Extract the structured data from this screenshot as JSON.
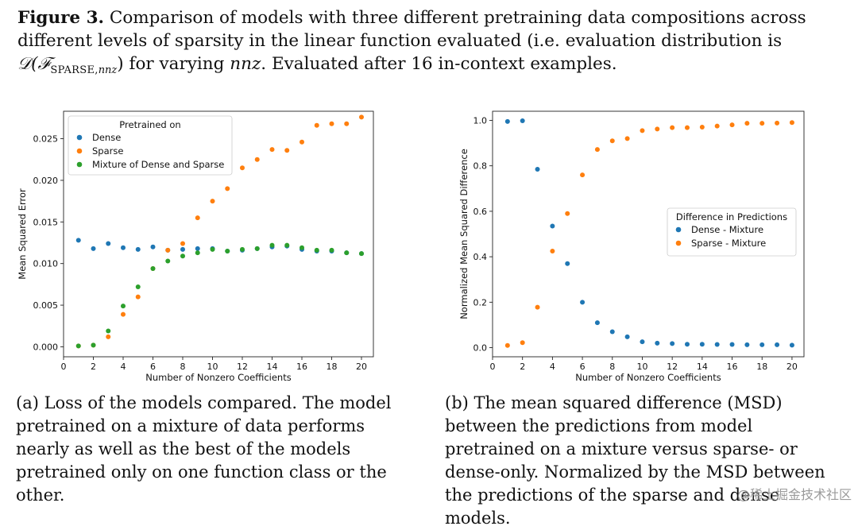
{
  "caption": {
    "label": "Figure 3.",
    "part1": " Comparison of models with three different pretraining data compositions across different levels of sparsity in the linear function evaluated (i.e. evaluation distribution is ",
    "math_d": "𝒟(ℱ",
    "math_sub": "SPARSE,",
    "math_sub_it": "nnz",
    "math_close": ")",
    "part2": " for varying ",
    "nnz": "nnz",
    "part3": ". Evaluated after 16 in-context examples."
  },
  "subcaptions": {
    "a": "(a) Loss of the models compared. The model pretrained on a mixture of data performs nearly as well as the best of the models pretrained only on one function class or the other.",
    "b": "(b) The mean squared difference (MSD) between the predictions from model pretrained on a mixture versus sparse- or dense-only. Normalized by the MSD between the predictions of the sparse and dense models."
  },
  "watermark": "@稀土掘金技术社区",
  "colors": {
    "blue": "#1f77b4",
    "orange": "#ff7f0e",
    "green": "#2ca02c"
  },
  "chart_data": [
    {
      "type": "scatter",
      "xlabel": "Number of Nonzero Coefficients",
      "ylabel": "Mean Squared Error",
      "xlim": [
        0,
        20.8
      ],
      "ylim": [
        -0.0012,
        0.0283
      ],
      "xticks": [
        0,
        2,
        4,
        6,
        8,
        10,
        12,
        14,
        16,
        18,
        20
      ],
      "yticks": [
        0.0,
        0.005,
        0.01,
        0.015,
        0.02,
        0.025
      ],
      "ytick_labels": [
        "0.000",
        "0.005",
        "0.010",
        "0.015",
        "0.020",
        "0.025"
      ],
      "legend": {
        "title": "Pretrained on",
        "placement": "top-left"
      },
      "x": [
        1,
        2,
        3,
        4,
        5,
        6,
        7,
        8,
        9,
        10,
        11,
        12,
        13,
        14,
        15,
        16,
        17,
        18,
        19,
        20
      ],
      "series": [
        {
          "name": "Dense",
          "color": "#1f77b4",
          "values": [
            0.0128,
            0.0118,
            0.0124,
            0.0119,
            0.0117,
            0.012,
            0.0116,
            0.0117,
            0.0118,
            0.0118,
            0.0115,
            0.0116,
            0.0118,
            0.012,
            0.0121,
            0.0117,
            0.0115,
            0.0115,
            0.0113,
            0.0112
          ]
        },
        {
          "name": "Sparse",
          "color": "#ff7f0e",
          "values": [
            0.0001,
            0.0002,
            0.0012,
            0.0039,
            0.006,
            0.0094,
            0.0116,
            0.0124,
            0.0155,
            0.0175,
            0.019,
            0.0215,
            0.0225,
            0.0237,
            0.0236,
            0.0246,
            0.0266,
            0.0268,
            0.0268,
            0.0276
          ]
        },
        {
          "name": "Mixture of Dense and Sparse",
          "color": "#2ca02c",
          "values": [
            0.0001,
            0.0002,
            0.0019,
            0.0049,
            0.0072,
            0.0094,
            0.0103,
            0.0109,
            0.0113,
            0.0117,
            0.0115,
            0.0117,
            0.0118,
            0.0122,
            0.0122,
            0.0119,
            0.0116,
            0.0116,
            0.0113,
            0.0112
          ]
        }
      ]
    },
    {
      "type": "scatter",
      "xlabel": "Number of Nonzero Coefficients",
      "ylabel": "Normalized Mean Squared Difference",
      "xlim": [
        0,
        20.8
      ],
      "ylim": [
        -0.04,
        1.04
      ],
      "xticks": [
        0,
        2,
        4,
        6,
        8,
        10,
        12,
        14,
        16,
        18,
        20
      ],
      "yticks": [
        0.0,
        0.2,
        0.4,
        0.6,
        0.8,
        1.0
      ],
      "ytick_labels": [
        "0.0",
        "0.2",
        "0.4",
        "0.6",
        "0.8",
        "1.0"
      ],
      "legend": {
        "title": "Difference in Predictions",
        "placement": "center-right"
      },
      "x": [
        1,
        2,
        3,
        4,
        5,
        6,
        7,
        8,
        9,
        10,
        11,
        12,
        13,
        14,
        15,
        16,
        17,
        18,
        19,
        20
      ],
      "series": [
        {
          "name": "Dense - Mixture",
          "color": "#1f77b4",
          "values": [
            0.995,
            0.998,
            0.785,
            0.535,
            0.37,
            0.2,
            0.11,
            0.07,
            0.048,
            0.026,
            0.02,
            0.018,
            0.015,
            0.015,
            0.014,
            0.014,
            0.013,
            0.013,
            0.013,
            0.011
          ]
        },
        {
          "name": "Sparse - Mixture",
          "color": "#ff7f0e",
          "values": [
            0.01,
            0.022,
            0.178,
            0.425,
            0.59,
            0.76,
            0.872,
            0.91,
            0.92,
            0.955,
            0.962,
            0.968,
            0.968,
            0.97,
            0.975,
            0.98,
            0.987,
            0.987,
            0.988,
            0.99
          ]
        }
      ]
    }
  ]
}
